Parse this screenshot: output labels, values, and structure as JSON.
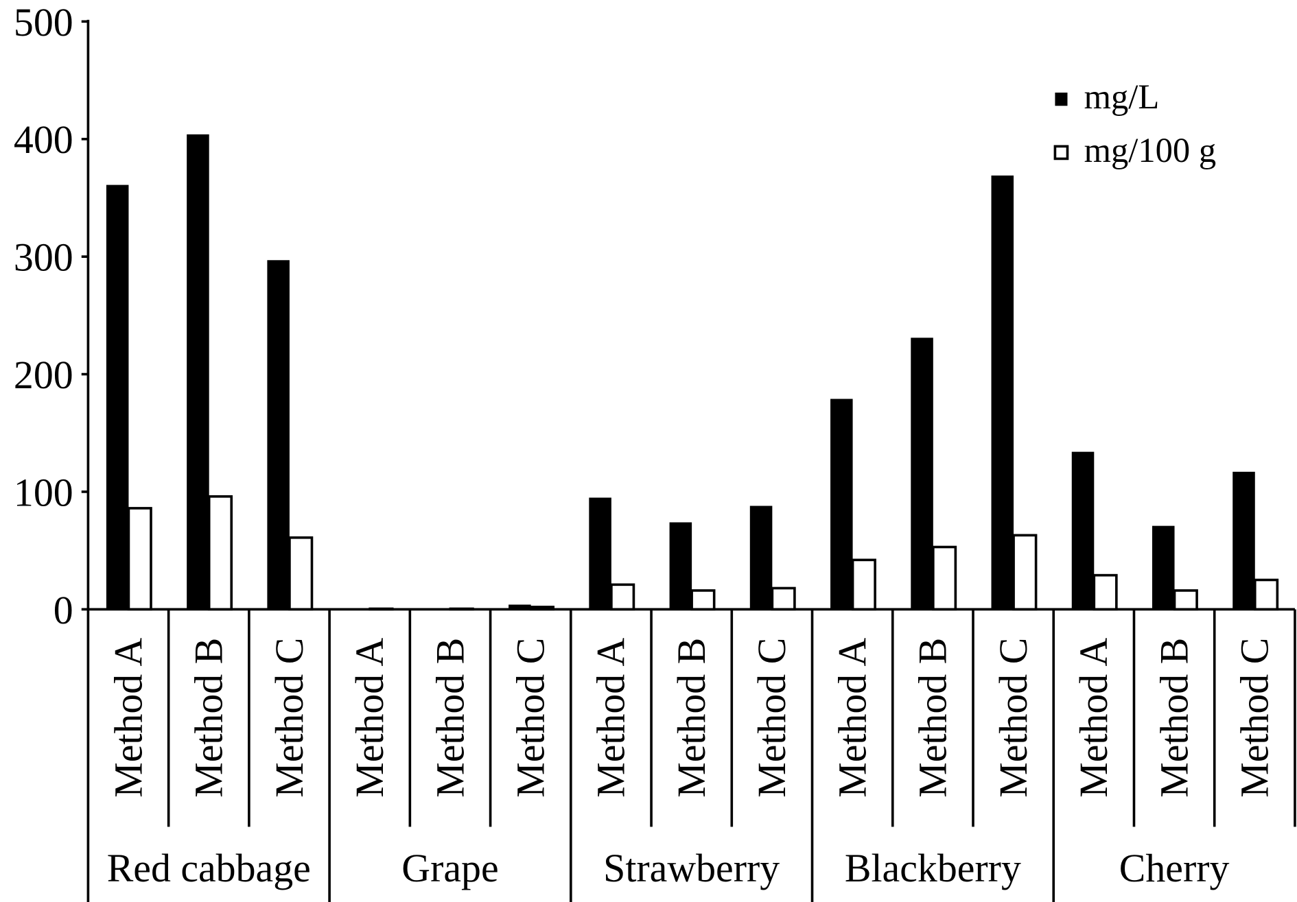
{
  "chart_data": {
    "type": "bar",
    "groups": [
      "Red cabbage",
      "Grape",
      "Strawberry",
      "Blackberry",
      "Cherry"
    ],
    "methods": [
      "Method  A",
      "Method B",
      "Method C",
      "Method A",
      "Method B",
      "Method C",
      "Method A",
      "Method B",
      "Method C",
      "Method A",
      "Method B",
      "Method C",
      "Method A",
      "Method B",
      "Method C"
    ],
    "series": [
      {
        "name": "mg/L",
        "color": "#000000",
        "values": [
          361,
          404,
          297,
          1,
          1,
          4,
          95,
          74,
          88,
          179,
          231,
          369,
          134,
          71,
          117
        ]
      },
      {
        "name": "mg/100 g",
        "color": "#ffffff",
        "values": [
          86,
          96,
          61,
          0.5,
          0.5,
          2,
          21,
          16,
          18,
          42,
          53,
          63,
          29,
          16,
          25
        ]
      }
    ],
    "yticks": [
      "0",
      "100",
      "200",
      "300",
      "400",
      "500"
    ],
    "ylim": [
      0,
      500
    ],
    "xlabel": "",
    "ylabel": "",
    "title": "",
    "grid": false,
    "legend": "top-right"
  }
}
